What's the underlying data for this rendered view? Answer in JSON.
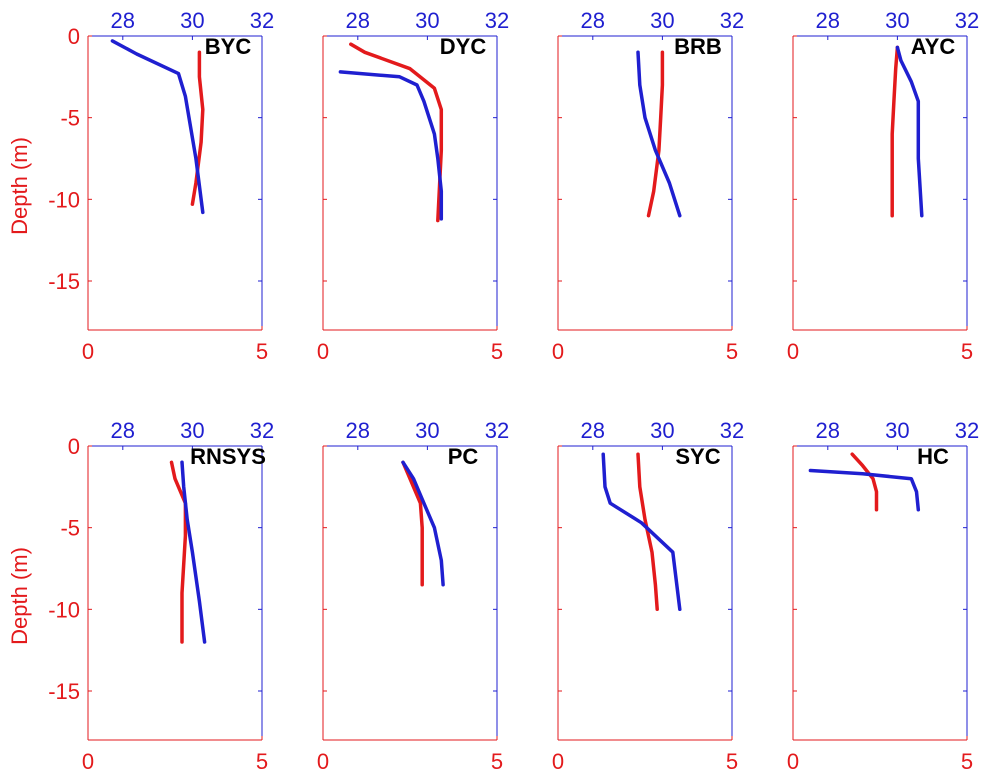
{
  "figure": {
    "ylabel": "Depth (m)",
    "colors": {
      "red_axis": "#e31a1c",
      "blue_axis": "#1f1fd0",
      "title": "#000000"
    }
  },
  "chart_data": [
    {
      "type": "line",
      "title": "BYC",
      "x_red_lim": [
        0,
        5
      ],
      "x_red_ticks": [
        "0",
        "5"
      ],
      "x_blue_lim": [
        27,
        32
      ],
      "x_blue_ticks": [
        "28",
        "30",
        "32"
      ],
      "ylim": [
        -18,
        0
      ],
      "y_ticks": [
        "0",
        "-5",
        "-10",
        "-15"
      ],
      "series": [
        {
          "axis": "red",
          "color": "#e31a1c",
          "x": [
            3.2,
            3.2,
            3.3,
            3.25,
            3.1,
            3.0
          ],
          "y": [
            -1.0,
            -2.5,
            -4.5,
            -6.5,
            -9.0,
            -10.3
          ]
        },
        {
          "axis": "blue",
          "color": "#1f1fd0",
          "x": [
            27.7,
            28.4,
            29.6,
            29.8,
            30.1,
            30.3
          ],
          "y": [
            -0.3,
            -1.1,
            -2.3,
            -3.7,
            -7.5,
            -10.8
          ]
        }
      ]
    },
    {
      "type": "line",
      "title": "DYC",
      "x_red_lim": [
        0,
        5
      ],
      "x_red_ticks": [
        "0",
        "5"
      ],
      "x_blue_lim": [
        27,
        32
      ],
      "x_blue_ticks": [
        "28",
        "30",
        "32"
      ],
      "ylim": [
        -18,
        0
      ],
      "y_ticks": [
        "0",
        "-5",
        "-10",
        "-15"
      ],
      "series": [
        {
          "axis": "red",
          "color": "#e31a1c",
          "x": [
            0.8,
            1.2,
            2.5,
            3.2,
            3.4,
            3.4,
            3.3
          ],
          "y": [
            -0.5,
            -1.0,
            -2.0,
            -3.2,
            -4.5,
            -7.0,
            -11.3
          ]
        },
        {
          "axis": "blue",
          "color": "#1f1fd0",
          "x": [
            27.5,
            29.2,
            29.7,
            29.9,
            30.2,
            30.3,
            30.4,
            30.4
          ],
          "y": [
            -2.2,
            -2.5,
            -3.0,
            -4.0,
            -6.0,
            -7.5,
            -9.5,
            -11.2
          ]
        }
      ]
    },
    {
      "type": "line",
      "title": "BRB",
      "x_red_lim": [
        0,
        5
      ],
      "x_red_ticks": [
        "0",
        "5"
      ],
      "x_blue_lim": [
        27,
        32
      ],
      "x_blue_ticks": [
        "28",
        "30",
        "32"
      ],
      "ylim": [
        -18,
        0
      ],
      "y_ticks": [
        "0",
        "-5",
        "-10",
        "-15"
      ],
      "series": [
        {
          "axis": "red",
          "color": "#e31a1c",
          "x": [
            3.0,
            3.0,
            2.95,
            2.9,
            2.75,
            2.6
          ],
          "y": [
            -1.0,
            -3.0,
            -5.0,
            -7.0,
            -9.5,
            -11.0
          ]
        },
        {
          "axis": "blue",
          "color": "#1f1fd0",
          "x": [
            29.3,
            29.35,
            29.5,
            29.8,
            30.2,
            30.5
          ],
          "y": [
            -1.0,
            -3.0,
            -5.0,
            -7.0,
            -9.0,
            -11.0
          ]
        }
      ]
    },
    {
      "type": "line",
      "title": "AYC",
      "x_red_lim": [
        0,
        5
      ],
      "x_red_ticks": [
        "0",
        "5"
      ],
      "x_blue_lim": [
        27,
        32
      ],
      "x_blue_ticks": [
        "28",
        "30",
        "32"
      ],
      "ylim": [
        -18,
        0
      ],
      "y_ticks": [
        "0",
        "-5",
        "-10",
        "-15"
      ],
      "series": [
        {
          "axis": "red",
          "color": "#e31a1c",
          "x": [
            3.0,
            2.95,
            2.9,
            2.85,
            2.85,
            2.85
          ],
          "y": [
            -0.7,
            -2.0,
            -4.0,
            -6.0,
            -9.0,
            -11.0
          ]
        },
        {
          "axis": "blue",
          "color": "#1f1fd0",
          "x": [
            30.0,
            30.1,
            30.4,
            30.6,
            30.6,
            30.7
          ],
          "y": [
            -0.7,
            -1.5,
            -2.8,
            -4.0,
            -7.5,
            -11.0
          ]
        }
      ]
    },
    {
      "type": "line",
      "title": "RNSYS",
      "x_red_lim": [
        0,
        5
      ],
      "x_red_ticks": [
        "0",
        "5"
      ],
      "x_blue_lim": [
        27,
        32
      ],
      "x_blue_ticks": [
        "28",
        "30",
        "32"
      ],
      "ylim": [
        -18,
        0
      ],
      "y_ticks": [
        "0",
        "-5",
        "-10",
        "-15"
      ],
      "series": [
        {
          "axis": "red",
          "color": "#e31a1c",
          "x": [
            2.4,
            2.5,
            2.8,
            2.8,
            2.7,
            2.7
          ],
          "y": [
            -1.0,
            -2.0,
            -3.5,
            -5.5,
            -9.0,
            -12.0
          ]
        },
        {
          "axis": "blue",
          "color": "#1f1fd0",
          "x": [
            29.7,
            29.75,
            29.85,
            30.0,
            30.2,
            30.35
          ],
          "y": [
            -1.0,
            -2.5,
            -4.5,
            -6.5,
            -9.5,
            -12.0
          ]
        }
      ]
    },
    {
      "type": "line",
      "title": "PC",
      "x_red_lim": [
        0,
        5
      ],
      "x_red_ticks": [
        "0",
        "5"
      ],
      "x_blue_lim": [
        27,
        32
      ],
      "x_blue_ticks": [
        "28",
        "30",
        "32"
      ],
      "ylim": [
        -18,
        0
      ],
      "y_ticks": [
        "0",
        "-5",
        "-10",
        "-15"
      ],
      "series": [
        {
          "axis": "red",
          "color": "#e31a1c",
          "x": [
            2.3,
            2.5,
            2.8,
            2.85,
            2.85
          ],
          "y": [
            -1.0,
            -2.0,
            -3.5,
            -5.0,
            -8.5
          ]
        },
        {
          "axis": "blue",
          "color": "#1f1fd0",
          "x": [
            29.3,
            29.6,
            29.9,
            30.2,
            30.4,
            30.45
          ],
          "y": [
            -1.0,
            -2.0,
            -3.5,
            -5.0,
            -7.0,
            -8.5
          ]
        }
      ]
    },
    {
      "type": "line",
      "title": "SYC",
      "x_red_lim": [
        0,
        5
      ],
      "x_red_ticks": [
        "0",
        "5"
      ],
      "x_blue_lim": [
        27,
        32
      ],
      "x_blue_ticks": [
        "28",
        "30",
        "32"
      ],
      "ylim": [
        -18,
        0
      ],
      "y_ticks": [
        "0",
        "-5",
        "-10",
        "-15"
      ],
      "series": [
        {
          "axis": "red",
          "color": "#e31a1c",
          "x": [
            2.3,
            2.35,
            2.5,
            2.7,
            2.8,
            2.85
          ],
          "y": [
            -0.5,
            -2.5,
            -4.5,
            -6.5,
            -8.5,
            -10.0
          ]
        },
        {
          "axis": "blue",
          "color": "#1f1fd0",
          "x": [
            28.3,
            28.35,
            28.5,
            29.4,
            30.3,
            30.5
          ],
          "y": [
            -0.5,
            -2.5,
            -3.5,
            -4.7,
            -6.5,
            -10.0
          ]
        }
      ]
    },
    {
      "type": "line",
      "title": "HC",
      "x_red_lim": [
        0,
        5
      ],
      "x_red_ticks": [
        "0",
        "5"
      ],
      "x_blue_lim": [
        27,
        32
      ],
      "x_blue_ticks": [
        "28",
        "30",
        "32"
      ],
      "ylim": [
        -18,
        0
      ],
      "y_ticks": [
        "0",
        "-5",
        "-10",
        "-15"
      ],
      "series": [
        {
          "axis": "red",
          "color": "#e31a1c",
          "x": [
            1.7,
            2.0,
            2.3,
            2.4,
            2.4
          ],
          "y": [
            -0.5,
            -1.2,
            -2.0,
            -2.8,
            -3.9
          ]
        },
        {
          "axis": "blue",
          "color": "#1f1fd0",
          "x": [
            27.5,
            29.0,
            30.4,
            30.55,
            30.6
          ],
          "y": [
            -1.5,
            -1.7,
            -2.0,
            -2.8,
            -3.9
          ]
        }
      ]
    }
  ]
}
